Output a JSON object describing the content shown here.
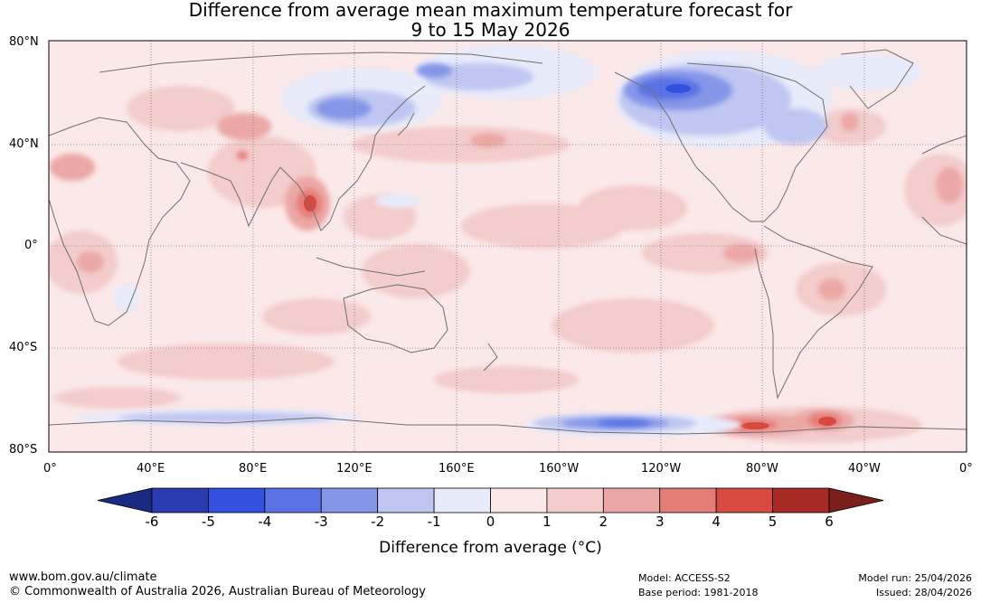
{
  "title_line1": "Difference from average mean maximum temperature forecast for",
  "title_line2": "9 to 15 May 2026",
  "lat_labels": [
    "80°N",
    "40°N",
    "0°",
    "40°S",
    "80°S"
  ],
  "lon_labels": [
    "0°",
    "40°E",
    "80°E",
    "120°E",
    "160°E",
    "160°W",
    "120°W",
    "80°W",
    "40°W",
    "0°"
  ],
  "colorbar": {
    "ticks": [
      "-6",
      "-5",
      "-4",
      "-3",
      "-2",
      "-1",
      "0",
      "1",
      "2",
      "3",
      "4",
      "5",
      "6"
    ],
    "colors": [
      "#1a2a80",
      "#2a3cb0",
      "#3350e0",
      "#5a72e4",
      "#8596e9",
      "#bfc6f1",
      "#e8ebfa",
      "#fbe8e8",
      "#f3cccc",
      "#eba7a5",
      "#e57d77",
      "#d84a40",
      "#a82a24",
      "#7a1f1c"
    ],
    "label": "Difference from average (°C)"
  },
  "footer": {
    "website": "www.bom.gov.au/climate",
    "copyright": "© Commonwealth of Australia 2026, Australian Bureau of Meteorology",
    "model": "Model: ACCESS-S2",
    "base_period": "Base period: 1981-2018",
    "model_run": "Model run: 25/04/2026",
    "issued": "Issued: 28/04/2026"
  }
}
